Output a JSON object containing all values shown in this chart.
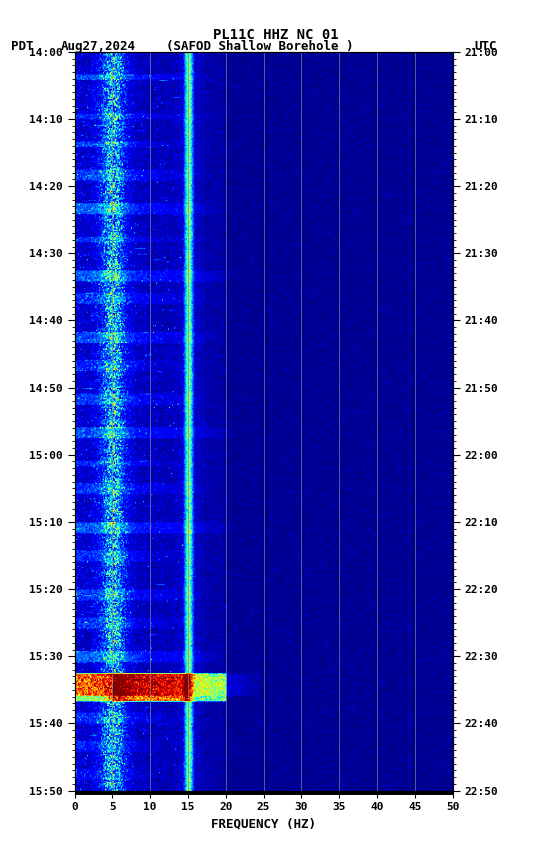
{
  "title_line1": "PL11C HHZ NC 01",
  "left_time_labels": [
    "14:00",
    "14:10",
    "14:20",
    "14:30",
    "14:40",
    "14:50",
    "15:00",
    "15:10",
    "15:20",
    "15:30",
    "15:40",
    "15:50"
  ],
  "right_time_labels": [
    "21:00",
    "21:10",
    "21:20",
    "21:30",
    "21:40",
    "21:50",
    "22:00",
    "22:10",
    "22:20",
    "22:30",
    "22:40",
    "22:50"
  ],
  "freq_min": 0,
  "freq_max": 50,
  "freq_ticks": [
    0,
    5,
    10,
    15,
    20,
    25,
    30,
    35,
    40,
    45,
    50
  ],
  "freq_label": "FREQUENCY (HZ)",
  "time_steps": 660,
  "freq_steps": 500,
  "background_color": "#ffffff",
  "vertical_lines_freq": [
    5,
    10,
    15,
    20,
    25,
    30,
    35,
    40,
    45
  ],
  "colormap": "jet",
  "figsize": [
    5.52,
    8.64
  ],
  "dpi": 100
}
